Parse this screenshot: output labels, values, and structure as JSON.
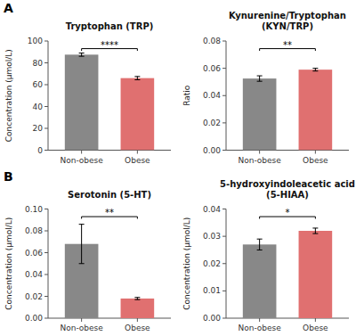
{
  "chart_data": [
    {
      "type": "bar",
      "panel_label": "A",
      "title": "Tryptophan (TRP)",
      "ylabel": "Concentration (μmol/L)",
      "categories": [
        "Non-obese",
        "Obese"
      ],
      "values": [
        87.5,
        66.0
      ],
      "errors": [
        1.5,
        1.5
      ],
      "colors": [
        "#888888",
        "#e07070"
      ],
      "ylim": [
        0,
        100
      ],
      "yticks": [
        0,
        20,
        40,
        60,
        80,
        100
      ],
      "annotations": [
        {
          "text": "****"
        }
      ]
    },
    {
      "type": "bar",
      "title": "Kynurenine/Tryptophan\n(KYN/TRP)",
      "ylabel": "Ratio",
      "categories": [
        "Non-obese",
        "Obese"
      ],
      "values": [
        0.0525,
        0.059
      ],
      "errors": [
        0.002,
        0.001
      ],
      "colors": [
        "#888888",
        "#e07070"
      ],
      "ylim": [
        0,
        0.08
      ],
      "yticks": [
        {
          "value": 0,
          "label": "0.00"
        },
        0.02,
        0.04,
        0.06,
        0.08
      ],
      "annotations": [
        {
          "text": "**"
        }
      ]
    },
    {
      "type": "bar",
      "panel_label": "B",
      "title": "Serotonin (5-HT)",
      "ylabel": "Concentration (μmol/L)",
      "categories": [
        "Non-obese",
        "Obese"
      ],
      "values": [
        0.068,
        0.018
      ],
      "errors": [
        0.018,
        0.001
      ],
      "colors": [
        "#888888",
        "#e07070"
      ],
      "ylim": [
        0,
        0.1
      ],
      "yticks": [
        {
          "value": 0,
          "label": "0.00"
        },
        0.02,
        0.04,
        0.06,
        0.08,
        {
          "value": 0.1,
          "label": "0.10"
        }
      ],
      "annotations": [
        {
          "text": "**"
        }
      ]
    },
    {
      "type": "bar",
      "title": "5-hydroxyindoleacetic acid\n(5-HIAA)",
      "ylabel": "Concentration (μmol/L)",
      "categories": [
        "Non-obese",
        "Obese"
      ],
      "values": [
        0.027,
        0.032
      ],
      "errors": [
        0.002,
        0.001
      ],
      "colors": [
        "#888888",
        "#e07070"
      ],
      "ylim": [
        0,
        0.04
      ],
      "yticks": [
        {
          "value": 0,
          "label": "0.00"
        },
        0.01,
        0.02,
        0.03,
        0.04
      ],
      "annotations": [
        {
          "text": "*"
        }
      ]
    }
  ]
}
